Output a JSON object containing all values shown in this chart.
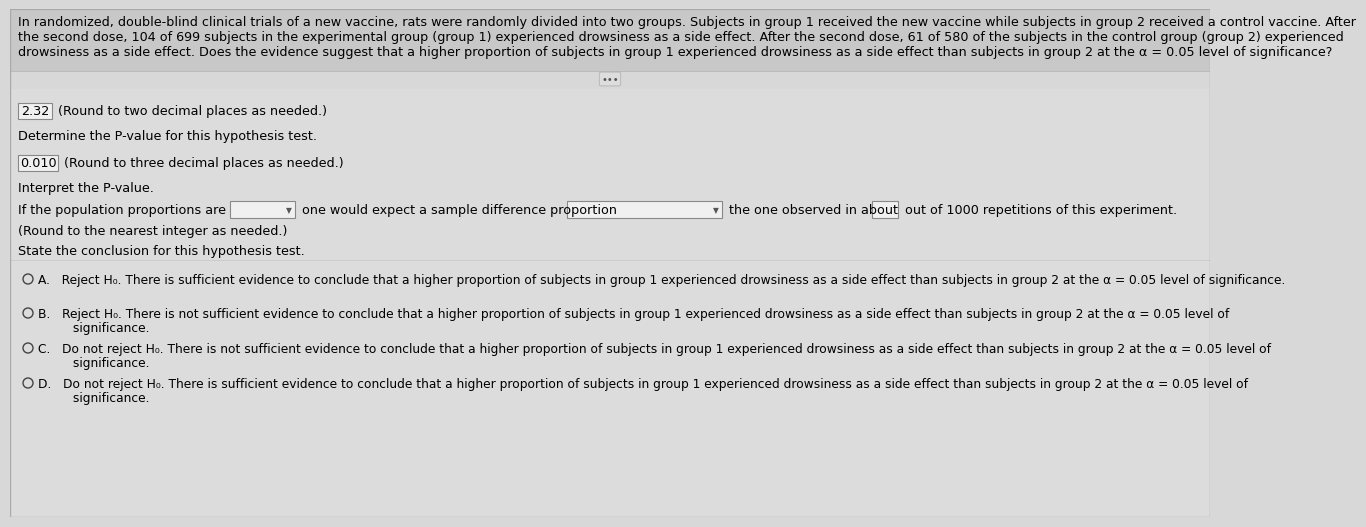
{
  "bg_color": "#d8d8d8",
  "header_bg": "#c8c8c8",
  "body_bg": "#dcdcdc",
  "white": "#ffffff",
  "border_color": "#aaaaaa",
  "text_color": "#000000",
  "header_text_line1": "In randomized, double-blind clinical trials of a new vaccine, rats were randomly divided into two groups. Subjects in group 1 received the new vaccine while subjects in group 2 received a control vaccine. After",
  "header_text_line2": "the second dose, 104 of 699 subjects in the experimental group (group 1) experienced drowsiness as a side effect. After the second dose, 61 of 580 of the subjects in the control group (group 2) experienced",
  "header_text_line3": "drowsiness as a side effect. Does the evidence suggest that a higher proportion of subjects in group 1 experienced drowsiness as a side effect than subjects in group 2 at the α = 0.05 level of significance?",
  "z_stat_box": "2.32",
  "z_stat_label": " (Round to two decimal places as needed.)",
  "p_value_question": "Determine the P-value for this hypothesis test.",
  "p_value_box": "0.010",
  "p_value_label": " (Round to three decimal places as needed.)",
  "interpret_label": "Interpret the P-value.",
  "interpret_note": "(Round to the nearest integer as needed.)",
  "conclusion_label": "State the conclusion for this hypothesis test.",
  "option_A": "A.   Reject H₀. There is sufficient evidence to conclude that a higher proportion of subjects in group 1 experienced drowsiness as a side effect than subjects in group 2 at the α = 0.05 level of significance.",
  "option_B_line1": "B.   Reject H₀. There is not sufficient evidence to conclude that a higher proportion of subjects in group 1 experienced drowsiness as a side effect than subjects in group 2 at the α = 0.05 level of",
  "option_B_line2": "         significance.",
  "option_C_line1": "C.   Do not reject H₀. There is not sufficient evidence to conclude that a higher proportion of subjects in group 1 experienced drowsiness as a side effect than subjects in group 2 at the α = 0.05 level of",
  "option_C_line2": "         significance.",
  "option_D_line1": "D.   Do not reject H₀. There is sufficient evidence to conclude that a higher proportion of subjects in group 1 experienced drowsiness as a side effect than subjects in group 2 at the α = 0.05 level of",
  "option_D_line2": "         significance.",
  "font_size_header": 9.2,
  "font_size_body": 9.2,
  "font_size_small": 8.8,
  "font_size_option": 8.8
}
